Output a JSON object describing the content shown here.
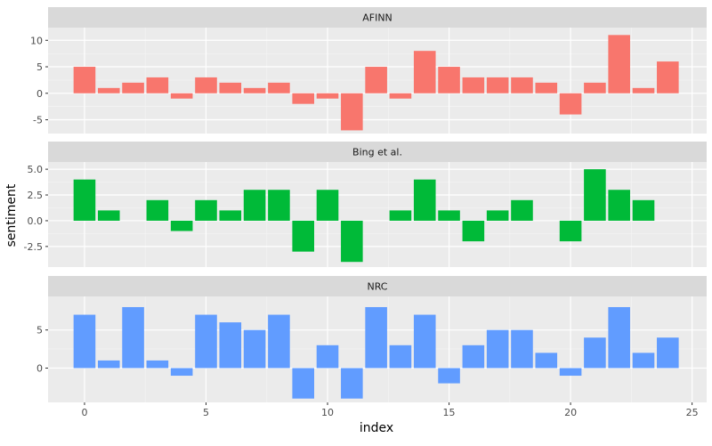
{
  "chart_data": {
    "type": "bar",
    "xlabel": "index",
    "ylabel": "sentiment",
    "x_ticks": [
      0,
      5,
      10,
      15,
      20,
      25
    ],
    "xlim": [
      -1.5,
      25.6
    ],
    "panels": [
      {
        "title": "AFINN",
        "color": "#F8766D",
        "ylim": [
          -7.6,
          12.4
        ],
        "y_ticks": [
          -5,
          0,
          5,
          10
        ],
        "y_tick_labels": [
          "-5",
          "0",
          "5",
          "10"
        ],
        "x": [
          0,
          1,
          2,
          3,
          4,
          5,
          6,
          7,
          8,
          9,
          10,
          11,
          12,
          13,
          14,
          15,
          16,
          17,
          18,
          19,
          20,
          21,
          22,
          23,
          24
        ],
        "values": [
          5,
          1,
          2,
          3,
          -1,
          3,
          2,
          1,
          2,
          -2,
          -1,
          -7,
          5,
          -1,
          8,
          5,
          3,
          3,
          3,
          2,
          -4,
          2,
          11,
          1,
          6
        ]
      },
      {
        "title": "Bing et al.",
        "color": "#00BA38",
        "ylim": [
          -4.5,
          5.7
        ],
        "y_ticks": [
          -2.5,
          0,
          2.5,
          5
        ],
        "y_tick_labels": [
          "-2.5",
          "0.0",
          "2.5",
          "5.0"
        ],
        "x": [
          0,
          1,
          3,
          4,
          5,
          6,
          7,
          8,
          9,
          10,
          11,
          13,
          14,
          15,
          16,
          17,
          18,
          20,
          21,
          22,
          23
        ],
        "values": [
          4,
          1,
          2,
          -1,
          2,
          1,
          3,
          3,
          -3,
          3,
          -4,
          1,
          4,
          1,
          -2,
          1,
          2,
          -2,
          5,
          3,
          2
        ]
      },
      {
        "title": "NRC",
        "color": "#619CFF",
        "ylim": [
          -4.5,
          9.4
        ],
        "y_ticks": [
          0,
          5
        ],
        "y_tick_labels": [
          "0",
          "5"
        ],
        "x": [
          0,
          1,
          2,
          3,
          4,
          5,
          6,
          7,
          8,
          9,
          10,
          11,
          12,
          13,
          14,
          15,
          16,
          17,
          18,
          19,
          20,
          21,
          22,
          23,
          24
        ],
        "values": [
          7,
          1,
          8,
          1,
          -1,
          7,
          6,
          5,
          7,
          -4,
          3,
          -4,
          8,
          3,
          7,
          -2,
          3,
          5,
          5,
          2,
          -1,
          4,
          8,
          2,
          4
        ]
      }
    ]
  }
}
